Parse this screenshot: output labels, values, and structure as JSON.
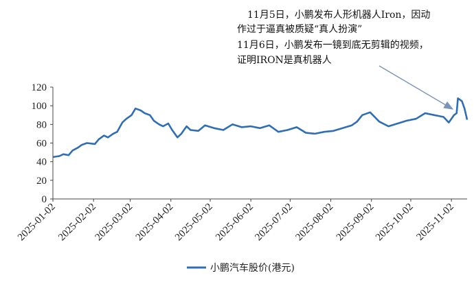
{
  "chart_data": {
    "type": "line",
    "title": "",
    "xlabel": "",
    "ylabel": "",
    "ylim": [
      0,
      120
    ],
    "yticks": [
      0,
      20,
      40,
      60,
      80,
      100,
      120
    ],
    "grid": false,
    "legend_position": "bottom",
    "x_tick_labels": [
      "2025-01-02",
      "2025-02-02",
      "2025-03-02",
      "2025-04-02",
      "2025-05-02",
      "2025-06-02",
      "2025-07-02",
      "2025-08-02",
      "2025-09-02",
      "2025-10-02",
      "2025-11-02"
    ],
    "series": [
      {
        "name": "小鹏汽车股价(港元)",
        "color": "#2f6db5",
        "x": [
          "2025-01-02",
          "2025-01-07",
          "2025-01-10",
          "2025-01-14",
          "2025-01-17",
          "2025-01-21",
          "2025-01-24",
          "2025-01-28",
          "2025-02-03",
          "2025-02-06",
          "2025-02-10",
          "2025-02-13",
          "2025-02-17",
          "2025-02-20",
          "2025-02-24",
          "2025-02-27",
          "2025-03-03",
          "2025-03-06",
          "2025-03-10",
          "2025-03-13",
          "2025-03-17",
          "2025-03-20",
          "2025-03-24",
          "2025-03-27",
          "2025-03-31",
          "2025-04-03",
          "2025-04-07",
          "2025-04-10",
          "2025-04-14",
          "2025-04-17",
          "2025-04-23",
          "2025-04-28",
          "2025-05-05",
          "2025-05-12",
          "2025-05-19",
          "2025-05-26",
          "2025-06-02",
          "2025-06-09",
          "2025-06-16",
          "2025-06-23",
          "2025-06-30",
          "2025-07-07",
          "2025-07-14",
          "2025-07-21",
          "2025-07-28",
          "2025-08-04",
          "2025-08-11",
          "2025-08-18",
          "2025-08-22",
          "2025-08-26",
          "2025-09-01",
          "2025-09-08",
          "2025-09-15",
          "2025-09-22",
          "2025-09-29",
          "2025-10-06",
          "2025-10-13",
          "2025-10-20",
          "2025-10-27",
          "2025-10-31",
          "2025-11-04",
          "2025-11-06",
          "2025-11-07",
          "2025-11-10",
          "2025-11-12",
          "2025-11-14"
        ],
        "values": [
          45,
          46,
          48,
          47,
          52,
          55,
          58,
          60,
          59,
          64,
          68,
          66,
          70,
          72,
          82,
          86,
          90,
          97,
          95,
          92,
          90,
          84,
          80,
          78,
          81,
          74,
          66,
          70,
          78,
          74,
          73,
          79,
          76,
          74,
          80,
          77,
          78,
          76,
          79,
          72,
          74,
          77,
          71,
          70,
          72,
          73,
          76,
          79,
          83,
          90,
          93,
          83,
          78,
          81,
          84,
          86,
          92,
          90,
          88,
          82,
          90,
          92,
          108,
          105,
          97,
          85
        ]
      }
    ],
    "annotation": {
      "lines": [
        "11月5日，小鹏发布人形机器人Iron，因动",
        "作过于逼真被质疑“真人扮演”",
        "11月6日，小鹏发布一镜到底无剪辑的视频，",
        "证明IRON是真机器人"
      ],
      "arrow_target_x": "2025-11-04",
      "arrow_target_y": 92
    }
  }
}
